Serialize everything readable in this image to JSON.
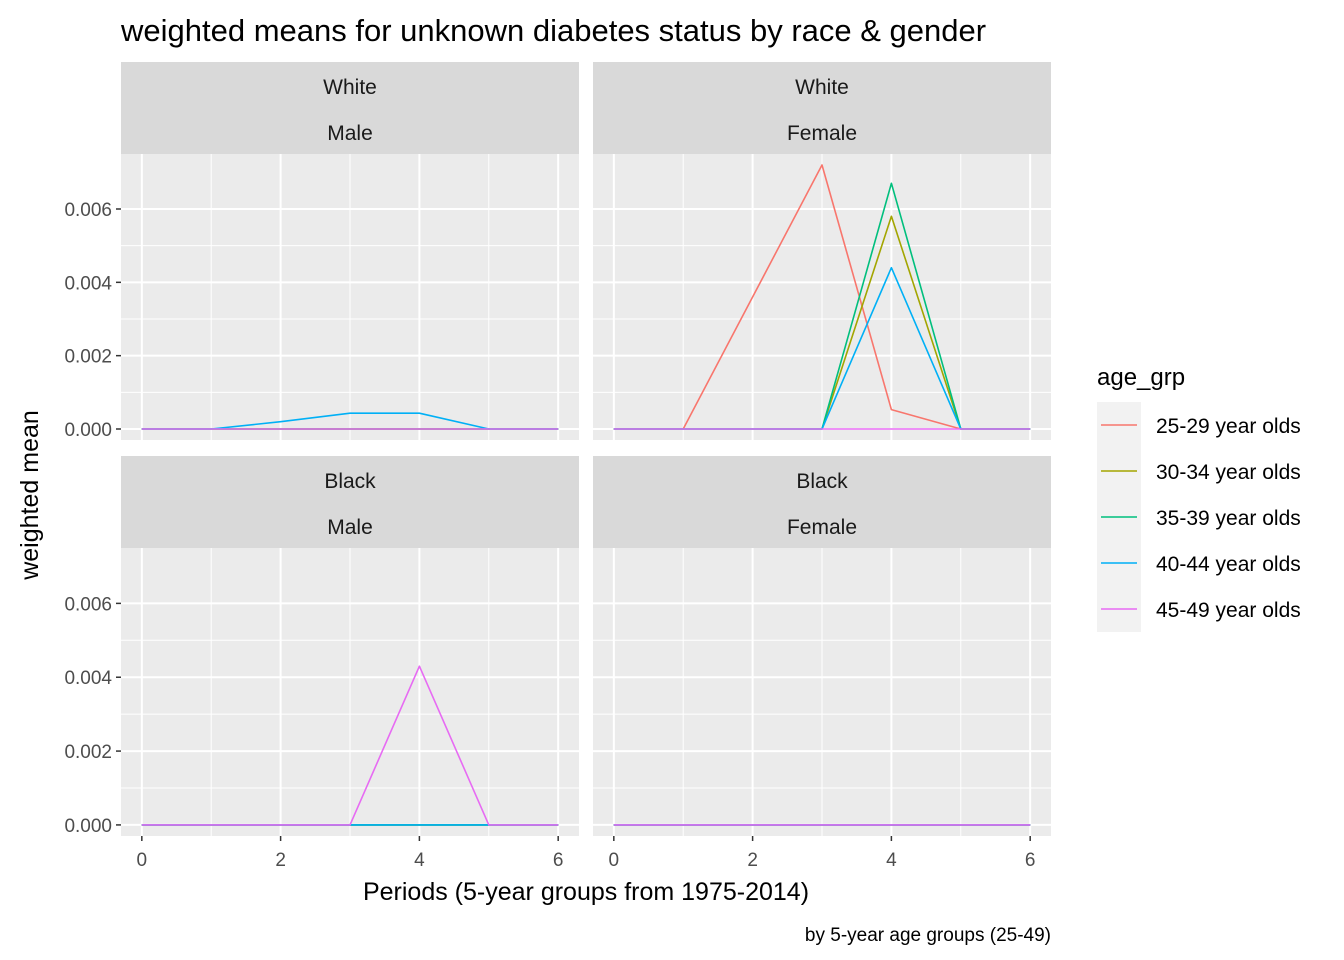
{
  "chart_data": {
    "type": "line",
    "title": "weighted means for unknown diabetes status by race & gender",
    "xlabel": "Periods (5-year groups from 1975-2014)",
    "ylabel": "weighted mean",
    "caption": "by 5-year age groups (25-49)",
    "legend_title": "age_grp",
    "legend_position": "right",
    "grid": true,
    "xlim": [
      -0.3,
      6.3
    ],
    "ylim": [
      -0.0003,
      0.0075
    ],
    "x_ticks": [
      0,
      2,
      4,
      6
    ],
    "x_tick_labels": [
      "0",
      "2",
      "4",
      "6"
    ],
    "y_ticks": [
      0,
      0.002,
      0.004,
      0.006
    ],
    "y_tick_labels": [
      "0.000",
      "0.002",
      "0.004",
      "0.006"
    ],
    "x": [
      0,
      1,
      2,
      3,
      4,
      5,
      6
    ],
    "series_meta": [
      {
        "name": "25-29 year olds",
        "color": "#F8766D"
      },
      {
        "name": "30-34 year olds",
        "color": "#A3A500"
      },
      {
        "name": "35-39 year olds",
        "color": "#00BF7D"
      },
      {
        "name": "40-44 year olds",
        "color": "#00B0F6"
      },
      {
        "name": "45-49 year olds",
        "color": "#E76BF3"
      }
    ],
    "panels": [
      {
        "race": "White",
        "gender": "Male",
        "series": [
          {
            "name": "25-29 year olds",
            "values": [
              0,
              0,
              0,
              0,
              0,
              0,
              0
            ]
          },
          {
            "name": "30-34 year olds",
            "values": [
              0,
              0,
              0,
              0,
              0,
              0,
              0
            ]
          },
          {
            "name": "35-39 year olds",
            "values": [
              0,
              0,
              0,
              0,
              0,
              0,
              0
            ]
          },
          {
            "name": "40-44 year olds",
            "values": [
              0,
              0,
              0.0002,
              0.00043,
              0.00043,
              0,
              0
            ]
          },
          {
            "name": "45-49 year olds",
            "values": [
              0,
              0,
              0,
              0,
              0,
              0,
              0
            ]
          }
        ]
      },
      {
        "race": "White",
        "gender": "Female",
        "series": [
          {
            "name": "25-29 year olds",
            "values": [
              0,
              0,
              0.0036,
              0.0072,
              0.00053,
              0,
              0
            ]
          },
          {
            "name": "30-34 year olds",
            "values": [
              0,
              0,
              0,
              0,
              0.0058,
              0,
              0
            ]
          },
          {
            "name": "35-39 year olds",
            "values": [
              0,
              0,
              0,
              0,
              0.0067,
              0,
              0
            ]
          },
          {
            "name": "40-44 year olds",
            "values": [
              0,
              0,
              0,
              0,
              0.0044,
              0,
              0
            ]
          },
          {
            "name": "45-49 year olds",
            "values": [
              0,
              0,
              0,
              0,
              0,
              0,
              0
            ]
          }
        ]
      },
      {
        "race": "Black",
        "gender": "Male",
        "series": [
          {
            "name": "25-29 year olds",
            "values": [
              0,
              0,
              0,
              0,
              0,
              0,
              0
            ]
          },
          {
            "name": "30-34 year olds",
            "values": [
              0,
              0,
              0,
              0,
              0,
              0,
              0
            ]
          },
          {
            "name": "35-39 year olds",
            "values": [
              0,
              0,
              0,
              0,
              0,
              0,
              0
            ]
          },
          {
            "name": "40-44 year olds",
            "values": [
              0,
              0,
              0,
              0,
              0,
              0,
              0
            ]
          },
          {
            "name": "45-49 year olds",
            "values": [
              0,
              0,
              0,
              0,
              0.0043,
              0,
              0
            ]
          }
        ]
      },
      {
        "race": "Black",
        "gender": "Female",
        "series": [
          {
            "name": "25-29 year olds",
            "values": [
              0,
              0,
              0,
              0,
              0,
              0,
              0
            ]
          },
          {
            "name": "30-34 year olds",
            "values": [
              0,
              0,
              0,
              0,
              0,
              0,
              0
            ]
          },
          {
            "name": "35-39 year olds",
            "values": [
              0,
              0,
              0,
              0,
              0,
              0,
              0
            ]
          },
          {
            "name": "40-44 year olds",
            "values": [
              0,
              0,
              0,
              0,
              0,
              0,
              0
            ]
          },
          {
            "name": "45-49 year olds",
            "values": [
              0,
              0,
              0,
              0,
              0,
              0,
              0
            ]
          }
        ]
      }
    ]
  }
}
